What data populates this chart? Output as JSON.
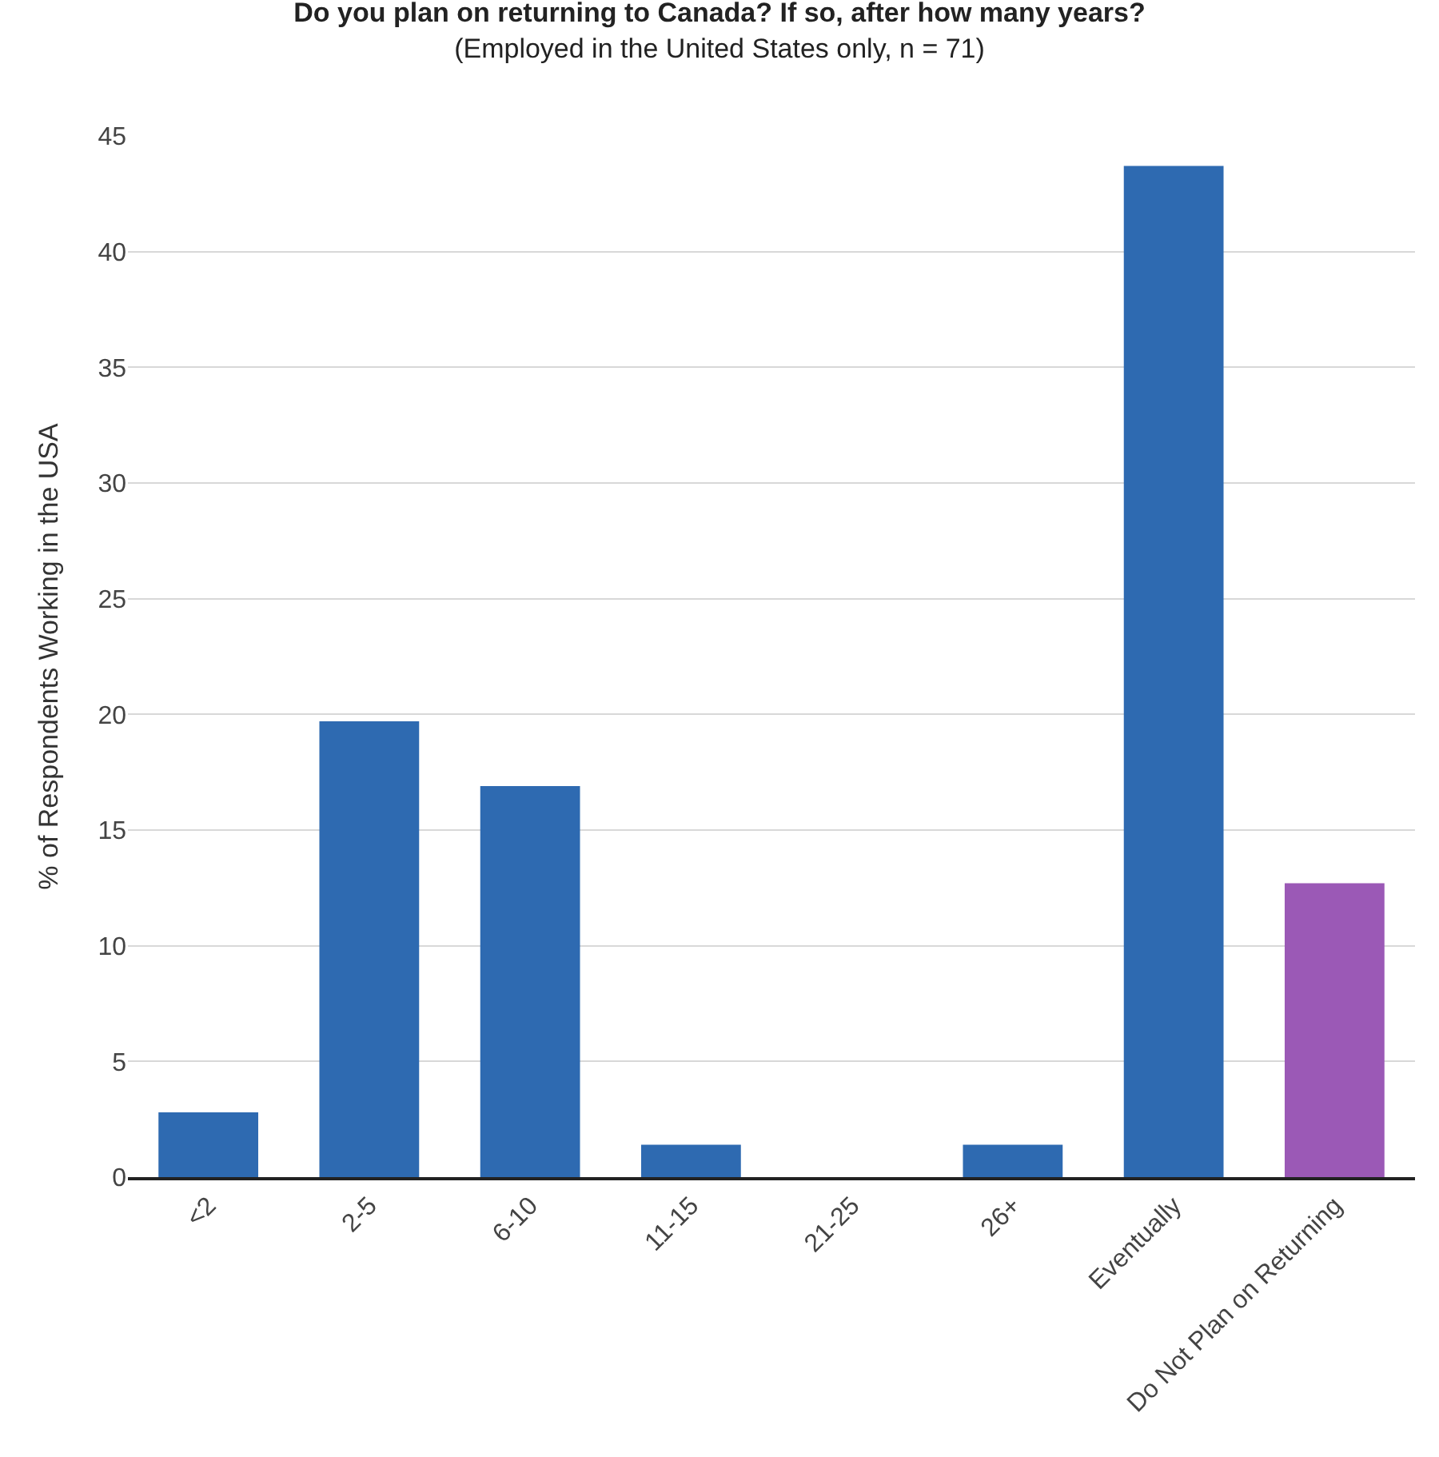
{
  "chart_data": {
    "type": "bar",
    "title": "Do you plan on returning to Canada? If so, after how many years?",
    "subtitle": "(Employed in the United States only, n = 71)",
    "ylabel": "% of Respondents Working in the USA",
    "categories": [
      "<2",
      "2-5",
      "6-10",
      "11-15",
      "21-25",
      "26+",
      "Eventually",
      "Do Not Plan on Returning"
    ],
    "values": [
      2.8,
      19.7,
      16.9,
      1.4,
      0,
      1.4,
      43.7,
      12.7
    ],
    "colors": [
      "#2e6ab1",
      "#2e6ab1",
      "#2e6ab1",
      "#2e6ab1",
      "#2e6ab1",
      "#2e6ab1",
      "#2e6ab1",
      "#9b59b6"
    ],
    "ylim": [
      0,
      45
    ],
    "yticks": [
      0,
      5,
      10,
      15,
      20,
      25,
      30,
      35,
      40,
      45
    ],
    "grid": "y"
  }
}
